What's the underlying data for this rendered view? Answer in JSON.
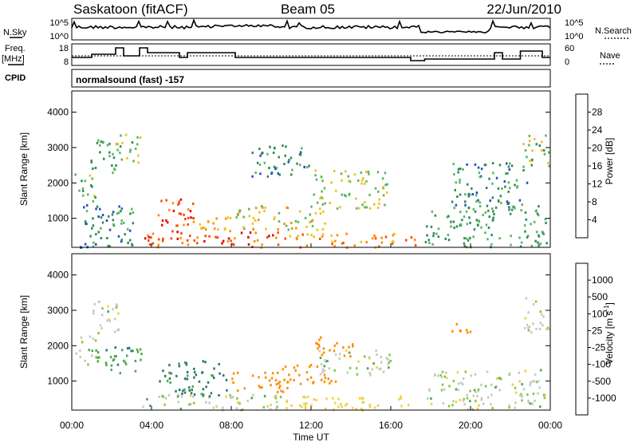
{
  "header": {
    "station": "Saskatoon (fitACF)",
    "beam": "Beam 05",
    "date": "22/Jun/2010"
  },
  "noise_panel": {
    "left_label": "N.Sky",
    "left_ticks": [
      "10^5",
      "10^0"
    ],
    "right_ticks": [
      "10^5",
      "10^0"
    ],
    "right_label": "N.Search"
  },
  "freq_panel": {
    "left_label_1": "Freq.",
    "left_label_2": "[MHz]",
    "left_ticks": [
      "18",
      "8"
    ],
    "right_ticks": [
      "60",
      "0"
    ],
    "right_label": "Nave"
  },
  "cpid_panel": {
    "label": "CPID",
    "program": "normalsound (fast) -157"
  },
  "power_panel": {
    "ylabel": "Slant Range [km]",
    "yticks": [
      "4000",
      "3000",
      "2000",
      "1000"
    ],
    "colorbar_label": "Power [dB]",
    "colorbar_ticks": [
      "28",
      "24",
      "20",
      "16",
      "12",
      "8",
      "4"
    ]
  },
  "velocity_panel": {
    "ylabel": "Slant Range [km]",
    "yticks": [
      "4000",
      "3000",
      "2000",
      "1000"
    ],
    "colorbar_label": "Velocity [m s",
    "colorbar_label_sup": "-1",
    "colorbar_label_end": "]",
    "colorbar_ticks": [
      "1000",
      "500",
      "100",
      "25",
      "-25",
      "-100",
      "-500",
      "-1000"
    ]
  },
  "x_axis": {
    "label": "Time UT",
    "ticks": [
      "00:00",
      "04:00",
      "08:00",
      "12:00",
      "16:00",
      "20:00",
      "00:00"
    ]
  },
  "colors": {
    "power_scale": [
      "#0000ff",
      "#1f4fc8",
      "#2e8b57",
      "#5cb85c",
      "#f0c020",
      "#ff8c00",
      "#ff4500",
      "#e00000"
    ],
    "velocity_scale": [
      "#1a3fb0",
      "#2a7a6a",
      "#4aa84a",
      "#80c840",
      "#c8c8c0",
      "#f0d040",
      "#ff8c00",
      "#ff4500",
      "#e00000"
    ]
  },
  "chart_data": [
    {
      "type": "heatmap",
      "title": "Saskatoon (fitACF) Beam 05 22/Jun/2010",
      "quantity": "Power [dB]",
      "xlabel": "Time UT",
      "ylabel": "Slant Range [km]",
      "x_range_hours": [
        0,
        24
      ],
      "y_range_km": [
        180,
        4600
      ],
      "color_range": [
        0,
        32
      ],
      "blobs": [
        {
          "t0": 0.1,
          "t1": 1.2,
          "r0": 1500,
          "r1": 2300,
          "v": 14
        },
        {
          "t0": 0.9,
          "t1": 2.4,
          "r0": 2300,
          "r1": 3300,
          "v": 12
        },
        {
          "t0": 2.0,
          "t1": 3.4,
          "r0": 2600,
          "r1": 3400,
          "v": 14
        },
        {
          "t0": 0.4,
          "t1": 3.2,
          "r0": 200,
          "r1": 1500,
          "v": 10
        },
        {
          "t0": 3.5,
          "t1": 10.5,
          "r0": 200,
          "r1": 650,
          "v": 26
        },
        {
          "t0": 4.3,
          "t1": 6.2,
          "r0": 600,
          "r1": 1600,
          "v": 27
        },
        {
          "t0": 6.3,
          "t1": 8.0,
          "r0": 500,
          "r1": 1100,
          "v": 20
        },
        {
          "t0": 8.2,
          "t1": 12.8,
          "r0": 700,
          "r1": 1400,
          "v": 18
        },
        {
          "t0": 10.5,
          "t1": 17.2,
          "r0": 200,
          "r1": 600,
          "v": 22
        },
        {
          "t0": 9.0,
          "t1": 12.0,
          "r0": 2200,
          "r1": 3100,
          "v": 10
        },
        {
          "t0": 12.0,
          "t1": 15.8,
          "r0": 1300,
          "r1": 2400,
          "v": 16
        },
        {
          "t0": 17.7,
          "t1": 21.5,
          "r0": 200,
          "r1": 1400,
          "v": 12
        },
        {
          "t0": 19.0,
          "t1": 22.8,
          "r0": 1400,
          "r1": 2600,
          "v": 10
        },
        {
          "t0": 21.8,
          "t1": 23.8,
          "r0": 200,
          "r1": 1400,
          "v": 12
        },
        {
          "t0": 22.6,
          "t1": 23.9,
          "r0": 2400,
          "r1": 3400,
          "v": 14
        }
      ]
    },
    {
      "type": "heatmap",
      "title": "Saskatoon (fitACF) Beam 05 22/Jun/2010",
      "quantity": "Velocity [m s^-1]",
      "xlabel": "Time UT",
      "ylabel": "Slant Range [km]",
      "x_range_hours": [
        0,
        24
      ],
      "y_range_km": [
        180,
        4600
      ],
      "color_levels": [
        -1000,
        -500,
        -100,
        -25,
        25,
        100,
        500,
        1000
      ],
      "blobs": [
        {
          "t0": 0.1,
          "t1": 1.2,
          "r0": 1500,
          "r1": 2300,
          "v": 0
        },
        {
          "t0": 0.9,
          "t1": 2.4,
          "r0": 2300,
          "r1": 3300,
          "v": 0
        },
        {
          "t0": 1.0,
          "t1": 3.5,
          "r0": 1200,
          "r1": 2000,
          "v": 80
        },
        {
          "t0": 3.5,
          "t1": 10.5,
          "r0": 200,
          "r1": 650,
          "v": 0
        },
        {
          "t0": 4.3,
          "t1": 7.8,
          "r0": 600,
          "r1": 1600,
          "v": 120
        },
        {
          "t0": 8.0,
          "t1": 11.0,
          "r0": 700,
          "r1": 1300,
          "v": -150
        },
        {
          "t0": 10.5,
          "t1": 13.2,
          "r0": 900,
          "r1": 1500,
          "v": -300
        },
        {
          "t0": 10.5,
          "t1": 17.2,
          "r0": 200,
          "r1": 600,
          "v": -60
        },
        {
          "t0": 12.2,
          "t1": 14.2,
          "r0": 1700,
          "r1": 2300,
          "v": -250
        },
        {
          "t0": 12.0,
          "t1": 16.0,
          "r0": 1200,
          "r1": 1900,
          "v": 0
        },
        {
          "t0": 17.7,
          "t1": 21.5,
          "r0": 200,
          "r1": 1300,
          "v": 0
        },
        {
          "t0": 19.0,
          "t1": 20.0,
          "r0": 2400,
          "r1": 2800,
          "v": -300
        },
        {
          "t0": 21.8,
          "t1": 23.8,
          "r0": 200,
          "r1": 1400,
          "v": 0
        },
        {
          "t0": 22.6,
          "t1": 23.9,
          "r0": 2400,
          "r1": 3400,
          "v": 0
        }
      ]
    }
  ]
}
